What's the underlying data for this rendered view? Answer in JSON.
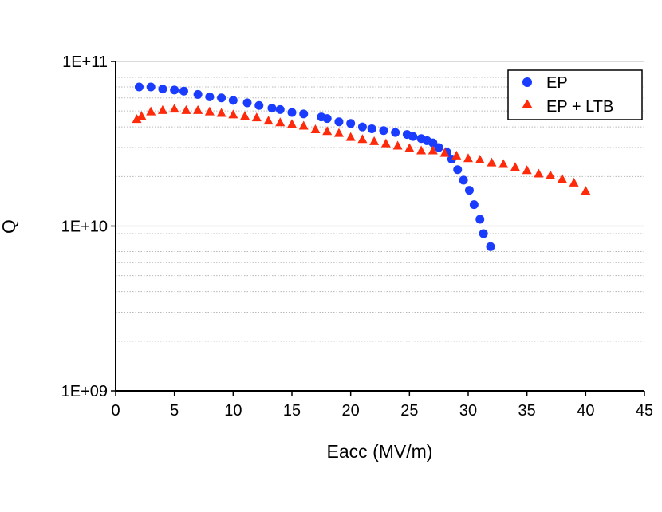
{
  "chart_data": {
    "type": "scatter",
    "title": "",
    "xlabel": "Eacc (MV/m)",
    "ylabel": "Q",
    "xlim": [
      0,
      45
    ],
    "ylim": [
      1000000000,
      100000000000
    ],
    "yscale": "log",
    "x_ticks": [
      0,
      5,
      10,
      15,
      20,
      25,
      30,
      35,
      40,
      45
    ],
    "x_tick_labels": [
      "0",
      "5",
      "10",
      "15",
      "20",
      "25",
      "30",
      "35",
      "40",
      "45"
    ],
    "y_ticks": [
      1000000000,
      10000000000,
      100000000000
    ],
    "y_tick_labels": [
      "1E+09",
      "1E+10",
      "1E+11"
    ],
    "grid": "horizontal minor (dotted)",
    "legend_position": "top-right",
    "series": [
      {
        "name": "EP",
        "marker": "circle",
        "color": "#1a3cff",
        "x": [
          2.0,
          3.0,
          4.0,
          5.0,
          5.8,
          7.0,
          8.0,
          9.0,
          10.0,
          11.2,
          12.2,
          13.3,
          14.0,
          15.0,
          16.0,
          17.5,
          18.0,
          19.0,
          20.0,
          21.0,
          21.8,
          22.8,
          23.8,
          24.8,
          25.3,
          26.0,
          26.5,
          27.0,
          27.5,
          28.2,
          28.6,
          29.1,
          29.6,
          30.1,
          30.5,
          31.0,
          31.3,
          31.9
        ],
        "y": [
          70000000000.0,
          70000000000.0,
          68000000000.0,
          67000000000.0,
          66000000000.0,
          63000000000.0,
          61000000000.0,
          60000000000.0,
          58000000000.0,
          56000000000.0,
          54000000000.0,
          52000000000.0,
          51000000000.0,
          49000000000.0,
          48000000000.0,
          46000000000.0,
          45000000000.0,
          43000000000.0,
          42000000000.0,
          40000000000.0,
          39000000000.0,
          38000000000.0,
          37000000000.0,
          36000000000.0,
          35000000000.0,
          34000000000.0,
          33000000000.0,
          32000000000.0,
          30000000000.0,
          28000000000.0,
          25500000000.0,
          22000000000.0,
          19000000000.0,
          16500000000.0,
          13500000000.0,
          11000000000.0,
          9000000000.0,
          7500000000.0
        ]
      },
      {
        "name": "EP + LTB",
        "marker": "triangle",
        "color": "#ff2a0a",
        "x": [
          1.8,
          2.2,
          3.0,
          4.0,
          5.0,
          6.0,
          7.0,
          8.0,
          9.0,
          10.0,
          11.0,
          12.0,
          13.0,
          14.0,
          15.0,
          16.0,
          17.0,
          18.0,
          19.0,
          20.0,
          21.0,
          22.0,
          23.0,
          24.0,
          25.0,
          26.0,
          27.0,
          28.0,
          29.0,
          30.0,
          31.0,
          32.0,
          33.0,
          34.0,
          35.0,
          36.0,
          37.0,
          38.0,
          39.0,
          40.0
        ],
        "y": [
          45000000000.0,
          47000000000.0,
          50000000000.0,
          51000000000.0,
          52000000000.0,
          51000000000.0,
          51000000000.0,
          50000000000.0,
          49000000000.0,
          48000000000.0,
          47000000000.0,
          46000000000.0,
          44000000000.0,
          43000000000.0,
          42000000000.0,
          41000000000.0,
          39000000000.0,
          38000000000.0,
          37000000000.0,
          35000000000.0,
          34000000000.0,
          33000000000.0,
          32000000000.0,
          31000000000.0,
          30000000000.0,
          29000000000.0,
          29000000000.0,
          28000000000.0,
          27000000000.0,
          26000000000.0,
          25500000000.0,
          24500000000.0,
          24000000000.0,
          23000000000.0,
          22000000000.0,
          21000000000.0,
          20500000000.0,
          19500000000.0,
          18500000000.0,
          16500000000.0
        ]
      }
    ]
  }
}
